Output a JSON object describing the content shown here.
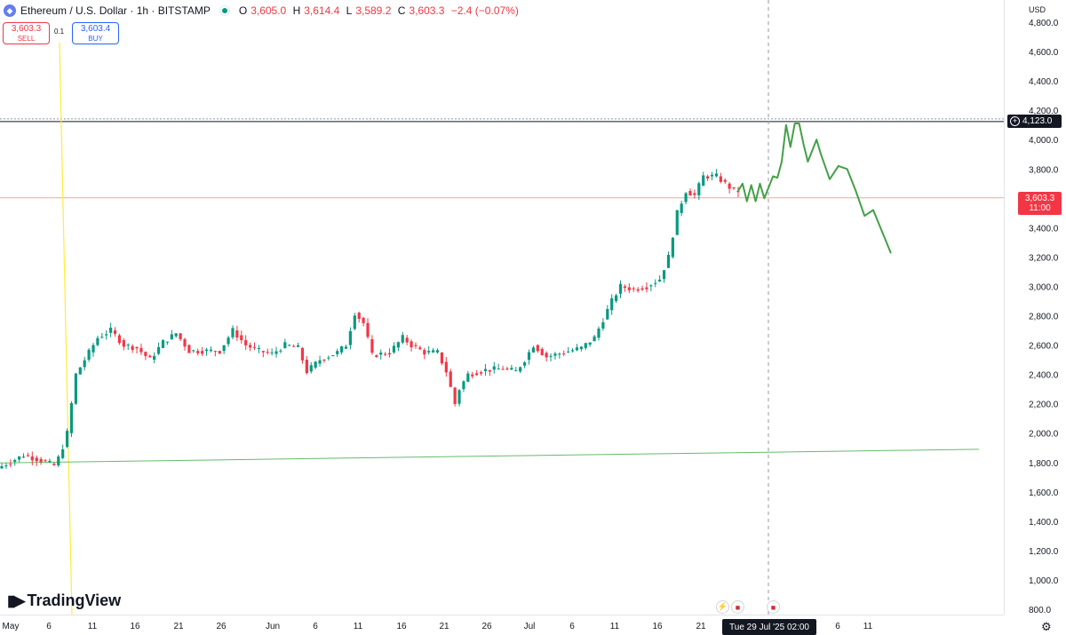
{
  "header": {
    "symbol": "Ethereum / U.S. Dollar · 1h · BITSTAMP",
    "o_label": "O",
    "o_value": "3,605.0",
    "h_label": "H",
    "h_value": "3,614.4",
    "l_label": "L",
    "l_value": "3,589.2",
    "c_label": "C",
    "c_value": "3,603.3",
    "change": "−2.4 (−0.07%)"
  },
  "trade": {
    "sell_price": "3,603.3",
    "sell_label": "SELL",
    "spread": "0.1",
    "buy_price": "3,603.4",
    "buy_label": "BUY"
  },
  "currency": "USD",
  "crosshair": {
    "price_label": "4,123.0",
    "date_label": "Tue 29 Jul '25   02:00"
  },
  "last_price": {
    "price": "3,603.3",
    "countdown": "11:00"
  },
  "branding": {
    "logo_text": "TradingView"
  },
  "colors": {
    "up": "#089981",
    "down": "#f23645",
    "projection": "#43a047",
    "support": "#66bb6a",
    "vertical": "#ffeb3b"
  },
  "chart_data": {
    "type": "line",
    "series_kind": "candlestick-1h",
    "ylim": [
      780,
      4900
    ],
    "y_ticks": [
      "800.0",
      "1,000.0",
      "1,200.0",
      "1,400.0",
      "1,600.0",
      "1,800.0",
      "2,000.0",
      "2,200.0",
      "2,400.0",
      "2,600.0",
      "2,800.0",
      "3,000.0",
      "3,200.0",
      "3,400.0",
      "3,600.0",
      "3,800.0",
      "4,000.0",
      "4,200.0",
      "4,400.0",
      "4,600.0",
      "4,800.0"
    ],
    "x_ticks": [
      "May",
      "6",
      "11",
      "16",
      "21",
      "26",
      "Jun",
      "6",
      "11",
      "16",
      "21",
      "26",
      "Jul",
      "6",
      "11",
      "16",
      "21",
      "6",
      "11"
    ],
    "price_path": [
      [
        0,
        1760
      ],
      [
        3,
        1850
      ],
      [
        5,
        1815
      ],
      [
        6.5,
        1780
      ],
      [
        7.2,
        1850
      ],
      [
        8,
        2000
      ],
      [
        9,
        2400
      ],
      [
        10,
        2500
      ],
      [
        11.5,
        2650
      ],
      [
        13,
        2700
      ],
      [
        14.5,
        2600
      ],
      [
        16,
        2580
      ],
      [
        17.5,
        2500
      ],
      [
        19,
        2620
      ],
      [
        20.5,
        2680
      ],
      [
        22,
        2560
      ],
      [
        23.5,
        2560
      ],
      [
        25.5,
        2560
      ],
      [
        27,
        2700
      ],
      [
        28.5,
        2600
      ],
      [
        30,
        2560
      ],
      [
        31.5,
        2540
      ],
      [
        33,
        2600
      ],
      [
        34.5,
        2580
      ],
      [
        35.5,
        2420
      ],
      [
        37,
        2500
      ],
      [
        39,
        2550
      ],
      [
        40,
        2600
      ],
      [
        41,
        2820
      ],
      [
        42,
        2750
      ],
      [
        43,
        2530
      ],
      [
        45,
        2550
      ],
      [
        46.5,
        2650
      ],
      [
        47.5,
        2600
      ],
      [
        49,
        2550
      ],
      [
        50.5,
        2550
      ],
      [
        51.5,
        2420
      ],
      [
        52.5,
        2200
      ],
      [
        53,
        2300
      ],
      [
        54,
        2400
      ],
      [
        56,
        2430
      ],
      [
        58,
        2440
      ],
      [
        59.5,
        2420
      ],
      [
        60.5,
        2500
      ],
      [
        61.5,
        2600
      ],
      [
        63,
        2520
      ],
      [
        65,
        2550
      ],
      [
        67,
        2580
      ],
      [
        68.5,
        2650
      ],
      [
        70.5,
        2900
      ],
      [
        71.5,
        3000
      ],
      [
        73,
        2980
      ],
      [
        74.5,
        3000
      ],
      [
        76,
        3050
      ],
      [
        77,
        3200
      ],
      [
        78,
        3500
      ],
      [
        79,
        3650
      ],
      [
        80,
        3620
      ],
      [
        81,
        3750
      ],
      [
        82.5,
        3750
      ],
      [
        83.5,
        3700
      ],
      [
        84.5,
        3650
      ]
    ],
    "projection_path": [
      [
        84.5,
        3650
      ],
      [
        85,
        3700
      ],
      [
        85.5,
        3580
      ],
      [
        86,
        3690
      ],
      [
        86.5,
        3580
      ],
      [
        87,
        3700
      ],
      [
        87.5,
        3600
      ],
      [
        88.5,
        3750
      ],
      [
        89,
        3740
      ],
      [
        89.5,
        3850
      ],
      [
        90,
        4100
      ],
      [
        90.5,
        3950
      ],
      [
        91,
        4110
      ],
      [
        91.5,
        4110
      ],
      [
        92,
        3970
      ],
      [
        92.5,
        3850
      ],
      [
        93.5,
        4000
      ],
      [
        94,
        3900
      ],
      [
        95,
        3730
      ],
      [
        96,
        3820
      ],
      [
        97,
        3800
      ],
      [
        98,
        3650
      ],
      [
        99,
        3480
      ],
      [
        100,
        3520
      ],
      [
        102,
        3230
      ]
    ],
    "levels": {
      "crosshair": 4123,
      "last": 3603.3
    },
    "support_line": {
      "start": [
        0,
        1797
      ],
      "end": [
        106,
        1890
      ]
    }
  }
}
